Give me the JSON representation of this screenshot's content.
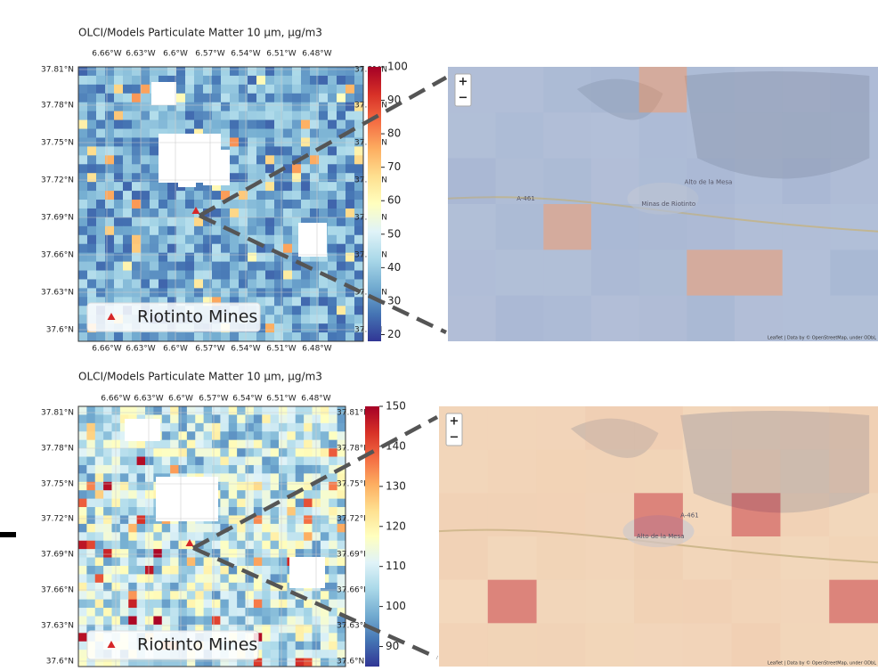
{
  "panels": [
    {
      "title": "OLCI/Models Particulate Matter 10 µm, µg/m3",
      "x_tick_labels": [
        "6.66°W",
        "6.63°W",
        "6.6°W",
        "6.57°W",
        "6.54°W",
        "6.51°W",
        "6.48°W"
      ],
      "y_tick_labels": [
        "37.81°N",
        "37.78°N",
        "37.75°N",
        "37.72°N",
        "37.69°N",
        "37.66°N",
        "37.63°N",
        "37.6°N"
      ],
      "colorbar": {
        "lim": [
          18,
          100
        ],
        "ticks": [
          20,
          30,
          40,
          50,
          60,
          70,
          80,
          90,
          100
        ]
      },
      "legend": "Riotinto Mines",
      "map": {
        "zoom_in": "+",
        "zoom_out": "−",
        "places": [
          "Minas de Riotinto",
          "Alto de la Mesa",
          "A-461"
        ],
        "attribution": "Leaflet | Data by © OpenStreetMap, under ODbL"
      }
    },
    {
      "title": "OLCI/Models Particulate Matter 10 µm, µg/m3",
      "x_tick_labels": [
        "6.66°W",
        "6.63°W",
        "6.6°W",
        "6.57°W",
        "6.54°W",
        "6.51°W",
        "6.48°W"
      ],
      "y_tick_labels": [
        "37.81°N",
        "37.78°N",
        "37.75°N",
        "37.72°N",
        "37.69°N",
        "37.66°N",
        "37.63°N",
        "37.6°N"
      ],
      "colorbar": {
        "lim": [
          85,
          150
        ],
        "ticks": [
          90,
          100,
          110,
          120,
          130,
          140,
          150
        ]
      },
      "legend": "Riotinto Mines",
      "map": {
        "zoom_in": "+",
        "zoom_out": "−",
        "places": [
          "Alto de la Mesa",
          "A-461"
        ],
        "attribution": "Leaflet | Data by © OpenStreetMap, under ODbL"
      }
    }
  ]
}
